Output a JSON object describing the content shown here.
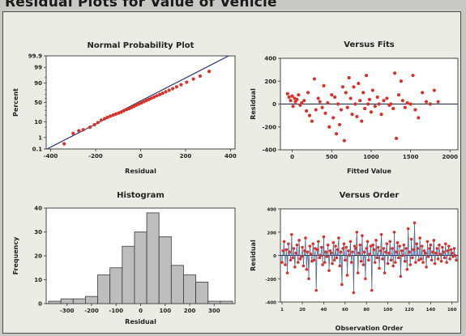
{
  "heading": "Residual Plots for Value of Vehicle",
  "colors": {
    "frame_bg": "#ecebe4",
    "plot_bg": "#ffffff",
    "points": "#d8322b",
    "fit_line": "#2a3a6a",
    "bars": "#bdbdbd",
    "stems": "#3a5da8"
  },
  "chart_data": [
    {
      "id": "npp",
      "type": "scatter",
      "title": "Normal Probability Plot",
      "xlabel": "Residual",
      "ylabel": "Percent",
      "xlim": [
        -420,
        420
      ],
      "xticks": [
        -400,
        -200,
        0,
        200,
        400
      ],
      "yscale": "normal-probability",
      "ylim": [
        0.1,
        99.9
      ],
      "yticks": [
        0.1,
        1,
        10,
        50,
        90,
        99,
        99.9
      ],
      "ytick_labels": [
        "0.1",
        "1",
        "10",
        "50",
        "90",
        "99",
        "99.9"
      ],
      "minor_yticks": [
        5,
        20,
        30,
        40,
        60,
        70,
        80,
        95
      ],
      "fit_line": {
        "x": [
          -420,
          400
        ],
        "y": [
          0.09,
          99.92
        ]
      },
      "points": {
        "x": [
          -340,
          -300,
          -275,
          -255,
          -225,
          -205,
          -190,
          -175,
          -160,
          -148,
          -135,
          -122,
          -110,
          -98,
          -86,
          -74,
          -62,
          -51,
          -40,
          -29,
          -18,
          -7,
          4,
          15,
          26,
          37,
          48,
          60,
          72,
          85,
          98,
          112,
          127,
          143,
          160,
          180,
          205,
          235,
          265,
          305
        ],
        "y": [
          0.3,
          2,
          3,
          3.5,
          5,
          7,
          9,
          12,
          14,
          16,
          18,
          20,
          22,
          24,
          26,
          29,
          32,
          34,
          37,
          40,
          43,
          46,
          49,
          52,
          55,
          58,
          61,
          64,
          67,
          70,
          73,
          76,
          79,
          82,
          85,
          88,
          91,
          94,
          96,
          98
        ]
      }
    },
    {
      "id": "fits",
      "type": "scatter",
      "title": "Versus Fits",
      "xlabel": "Fitted Value",
      "ylabel": "Residual",
      "xlim": [
        -150,
        2100
      ],
      "xticks": [
        0,
        500,
        1000,
        1500,
        2000
      ],
      "ylim": [
        -400,
        400
      ],
      "yticks": [
        -400,
        -200,
        0,
        200,
        400
      ],
      "reference_line": 0,
      "points": {
        "x": [
          -60,
          -40,
          -20,
          0,
          10,
          30,
          40,
          60,
          80,
          100,
          120,
          150,
          180,
          200,
          220,
          250,
          280,
          300,
          330,
          350,
          380,
          400,
          420,
          450,
          470,
          500,
          520,
          540,
          560,
          580,
          600,
          620,
          640,
          660,
          680,
          700,
          720,
          740,
          760,
          780,
          800,
          820,
          840,
          860,
          880,
          900,
          920,
          940,
          960,
          980,
          1000,
          1020,
          1050,
          1080,
          1100,
          1130,
          1160,
          1200,
          1230,
          1250,
          1280,
          1300,
          1320,
          1350,
          1380,
          1400,
          1430,
          1460,
          1500,
          1530,
          1560,
          1600,
          1650,
          1700,
          1750,
          1800,
          1850
        ],
        "y": [
          90,
          60,
          30,
          70,
          -20,
          50,
          20,
          40,
          80,
          -10,
          10,
          30,
          -60,
          100,
          -100,
          -150,
          220,
          -50,
          50,
          20,
          -30,
          160,
          -80,
          10,
          -200,
          80,
          -120,
          60,
          -260,
          0,
          -180,
          -50,
          150,
          -320,
          100,
          -30,
          230,
          50,
          -90,
          150,
          0,
          -110,
          180,
          30,
          -150,
          100,
          -40,
          250,
          0,
          40,
          -70,
          120,
          -20,
          60,
          0,
          -90,
          30,
          50,
          -10,
          0,
          -40,
          270,
          -300,
          80,
          200,
          30,
          -30,
          10,
          0,
          250,
          -50,
          -120,
          100,
          20,
          0,
          120,
          20
        ]
      }
    },
    {
      "id": "hist",
      "type": "bar",
      "title": "Histogram",
      "xlabel": "Residual",
      "ylabel": "Frequency",
      "ylim": [
        0,
        40
      ],
      "yticks": [
        0,
        10,
        20,
        30,
        40
      ],
      "xticks": [
        -300,
        -200,
        -100,
        0,
        100,
        200,
        300
      ],
      "xlim": [
        -375,
        375
      ],
      "bin_width": 50,
      "bin_starts": [
        -375,
        -325,
        -275,
        -225,
        -175,
        -125,
        -75,
        -25,
        25,
        75,
        125,
        175,
        225,
        275,
        325
      ],
      "values": [
        1,
        2,
        2,
        3,
        12,
        15,
        24,
        30,
        38,
        28,
        16,
        12,
        9,
        1,
        1
      ]
    },
    {
      "id": "order",
      "type": "line",
      "title": "Versus Order",
      "xlabel": "Observation Order",
      "ylabel": "Residual",
      "xlim": [
        1,
        164
      ],
      "xticks": [
        1,
        20,
        40,
        60,
        80,
        100,
        120,
        140,
        160
      ],
      "ylim": [
        -400,
        400
      ],
      "yticks": [
        -400,
        -200,
        0,
        200,
        400
      ],
      "reference_line": 0,
      "residuals": [
        -60,
        40,
        120,
        -80,
        50,
        -150,
        100,
        30,
        -40,
        180,
        -20,
        60,
        -100,
        20,
        90,
        -60,
        130,
        -30,
        -10,
        70,
        -90,
        40,
        150,
        -120,
        30,
        -200,
        80,
        10,
        -50,
        100,
        -40,
        60,
        -300,
        50,
        120,
        -20,
        0,
        70,
        -80,
        160,
        -60,
        30,
        -10,
        90,
        -130,
        40,
        20,
        -70,
        110,
        -40,
        80,
        -20,
        50,
        150,
        -90,
        30,
        -250,
        60,
        100,
        -40,
        70,
        -170,
        40,
        0,
        120,
        -60,
        30,
        -320,
        80,
        60,
        200,
        -150,
        20,
        90,
        -50,
        170,
        -80,
        30,
        -200,
        60,
        120,
        -40,
        10,
        80,
        -300,
        90,
        50,
        -60,
        130,
        -20,
        70,
        -110,
        40,
        180,
        -30,
        60,
        -150,
        30,
        100,
        -70,
        20,
        120,
        -40,
        60,
        -90,
        200,
        -60,
        30,
        110,
        -20,
        80,
        -180,
        40,
        0,
        90,
        -50,
        60,
        -120,
        230,
        30,
        -80,
        140,
        -20,
        50,
        280,
        -60,
        100,
        60,
        -40,
        150,
        -30,
        80,
        -60,
        40,
        20,
        -100,
        120,
        -10,
        60,
        90,
        -40,
        30,
        130,
        -70,
        20,
        60,
        -30,
        90,
        10,
        -50,
        70,
        30,
        -20,
        100,
        -60,
        40,
        80,
        -30,
        50,
        20,
        -10,
        60,
        0,
        -40
      ]
    }
  ]
}
